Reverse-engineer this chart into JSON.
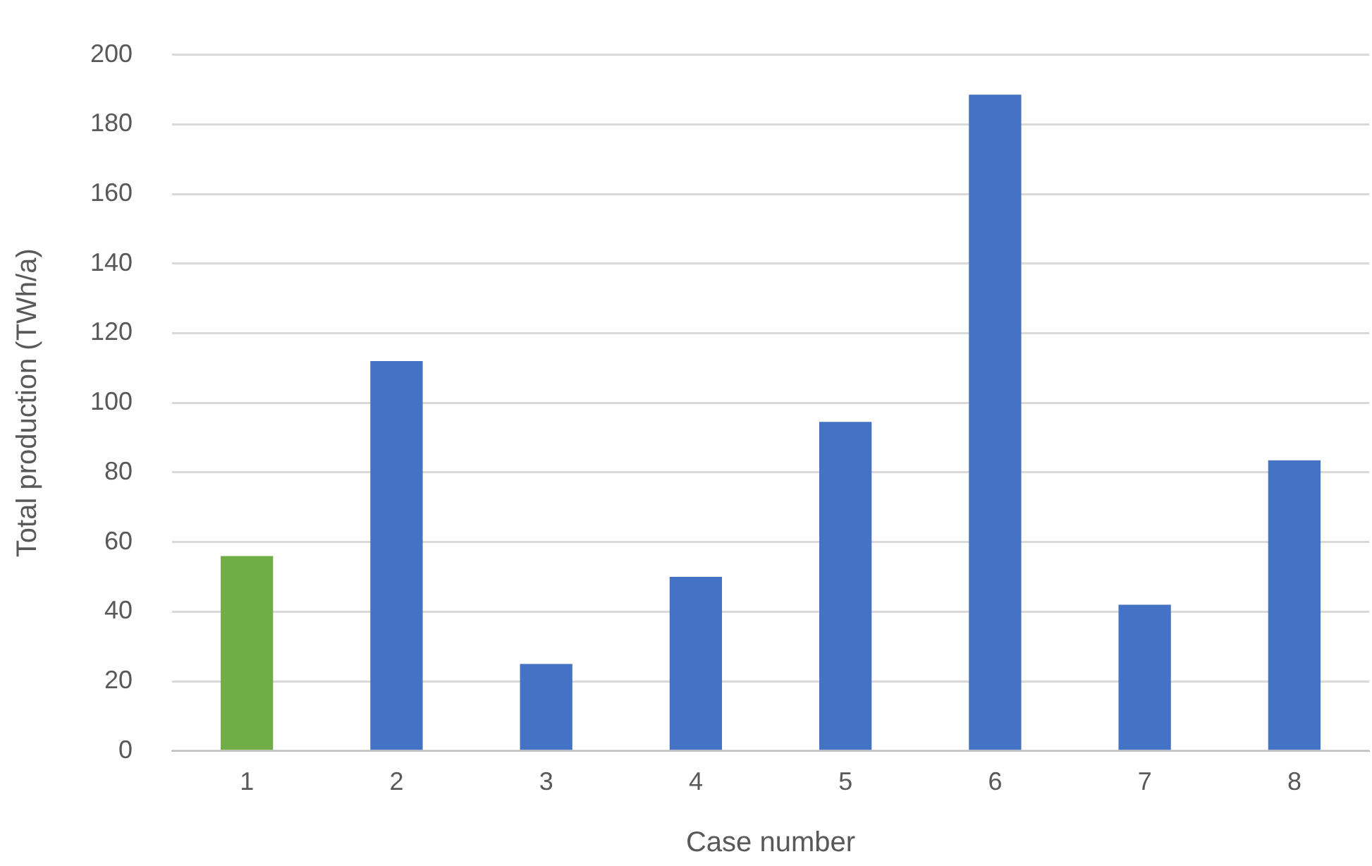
{
  "chart_data": {
    "type": "bar",
    "xlabel": "Case number",
    "ylabel": "Total production (TWh/a)",
    "categories": [
      "1",
      "2",
      "3",
      "4",
      "5",
      "6",
      "7",
      "8"
    ],
    "values": [
      56,
      112,
      25,
      50,
      94.5,
      188.5,
      42,
      83.5
    ],
    "colors": [
      "#70ad47",
      "#4472c4",
      "#4472c4",
      "#4472c4",
      "#4472c4",
      "#4472c4",
      "#4472c4",
      "#4472c4"
    ],
    "ylim": [
      0,
      200
    ],
    "yticks": [
      0,
      20,
      40,
      60,
      80,
      100,
      120,
      140,
      160,
      180,
      200
    ],
    "grid": "y"
  }
}
